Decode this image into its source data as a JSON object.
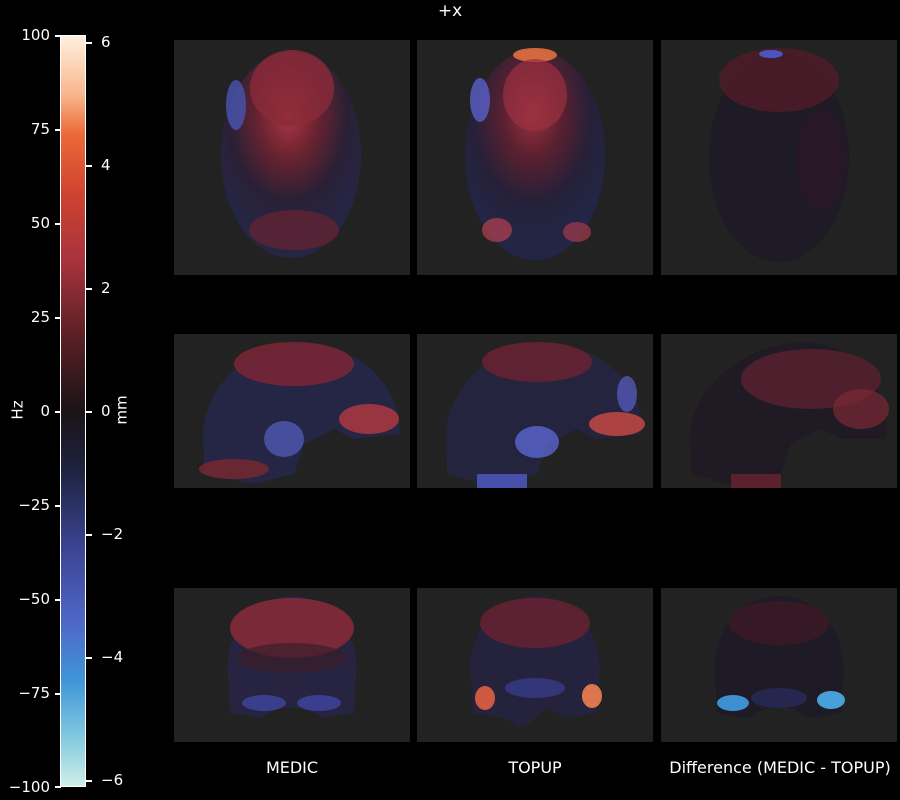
{
  "figure": {
    "title": "+x",
    "colorbar": {
      "left_label": "Hz",
      "right_label": "mm",
      "hz_ticks": [
        "100",
        "75",
        "50",
        "25",
        "0",
        "−25",
        "−50",
        "−75",
        "−100"
      ],
      "mm_ticks": [
        "6",
        "4",
        "2",
        "0",
        "−2",
        "−4",
        "−6"
      ]
    },
    "columns": [
      "MEDIC",
      "TOPUP",
      "Difference (MEDIC - TOPUP)"
    ]
  }
}
